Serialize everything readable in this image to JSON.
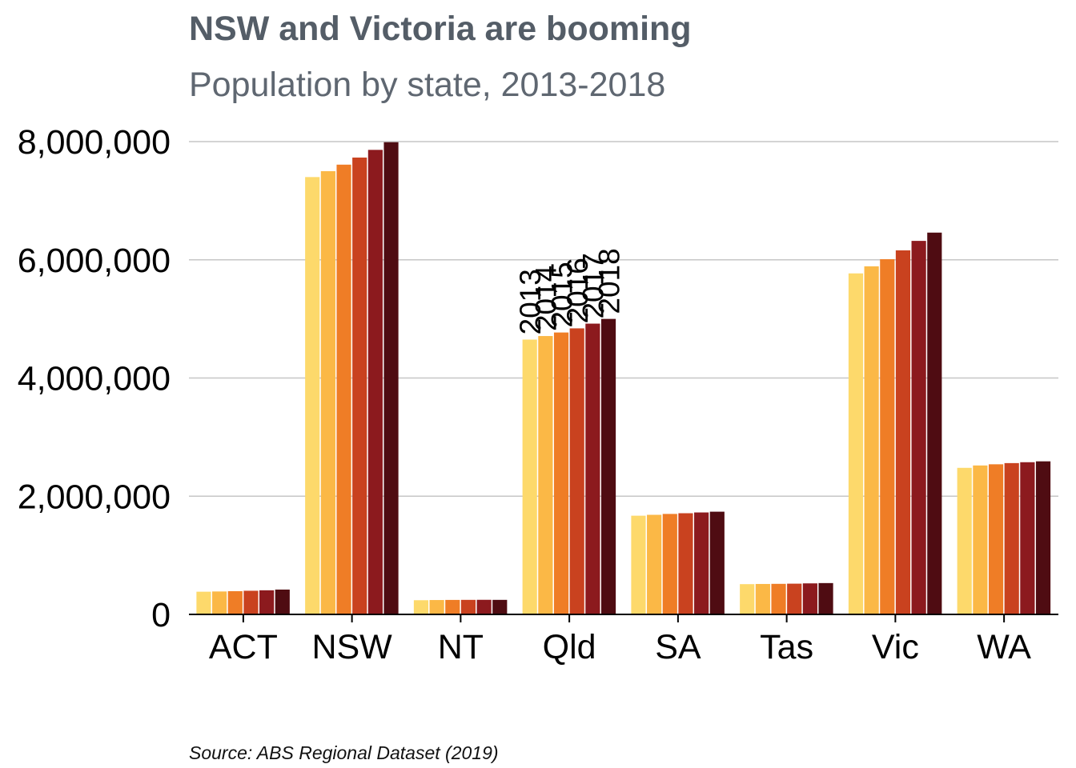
{
  "title": "NSW and Victoria are booming",
  "subtitle": "Population by state, 2013-2018",
  "caption": "Source: ABS Regional Dataset (2019)",
  "colors": {
    "gridline": "#c6c6c6",
    "axis": "#000000",
    "title": "#545d67",
    "subtitle": "#5f6771",
    "series": [
      "#fdd96b",
      "#fbb846",
      "#ef7d26",
      "#c9421f",
      "#8c1a1e",
      "#4f0c12"
    ]
  },
  "chart_data": {
    "type": "bar",
    "title": "NSW and Victoria are booming",
    "subtitle": "Population by state, 2013-2018",
    "xlabel": "",
    "ylabel": "",
    "ylim": [
      0,
      8000000
    ],
    "yticks": [
      0,
      2000000,
      4000000,
      6000000,
      8000000
    ],
    "ytick_labels": [
      "0",
      "2,000,000",
      "4,000,000",
      "6,000,000",
      "8,000,000"
    ],
    "grid": "horizontal",
    "legend": "none",
    "categories": [
      "ACT",
      "NSW",
      "NT",
      "Qld",
      "SA",
      "Tas",
      "Vic",
      "WA"
    ],
    "label_category": "Qld",
    "series": [
      {
        "name": "2013",
        "values": [
          384000,
          7400000,
          240000,
          4650000,
          1670000,
          512000,
          5770000,
          2480000
        ]
      },
      {
        "name": "2014",
        "values": [
          388000,
          7500000,
          243000,
          4710000,
          1685000,
          515000,
          5890000,
          2520000
        ]
      },
      {
        "name": "2015",
        "values": [
          393000,
          7610000,
          245000,
          4770000,
          1700000,
          517000,
          6010000,
          2540000
        ]
      },
      {
        "name": "2016",
        "values": [
          400000,
          7730000,
          246000,
          4840000,
          1712000,
          520000,
          6160000,
          2560000
        ]
      },
      {
        "name": "2017",
        "values": [
          408000,
          7860000,
          247000,
          4920000,
          1725000,
          525000,
          6320000,
          2575000
        ]
      },
      {
        "name": "2018",
        "values": [
          420000,
          7990000,
          246000,
          5000000,
          1738000,
          530000,
          6460000,
          2590000
        ]
      }
    ]
  }
}
